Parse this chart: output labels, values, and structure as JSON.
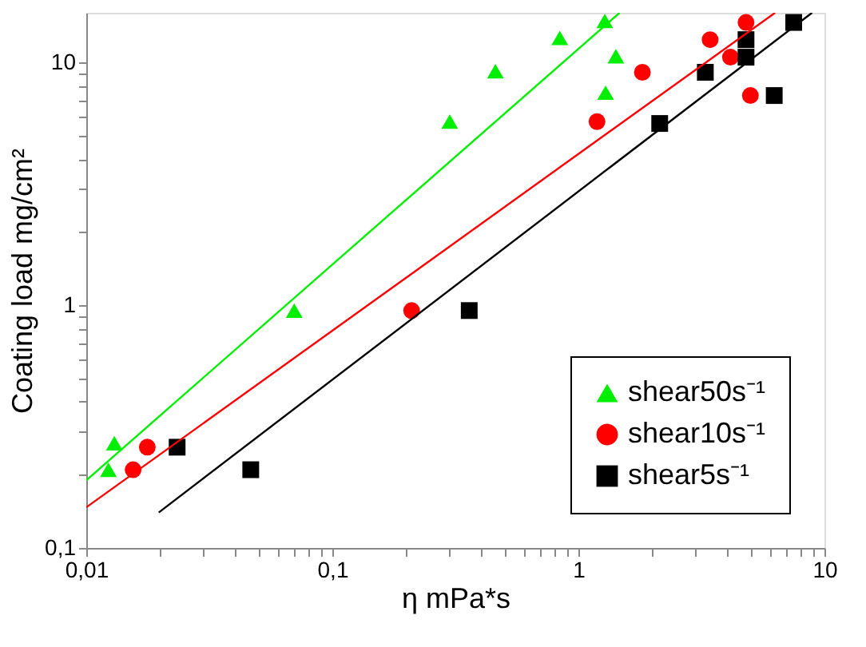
{
  "chart_data": {
    "type": "scatter",
    "xlabel": "η mPa*s",
    "ylabel": "Coating load mg/cm²",
    "log": "xy",
    "grid": false,
    "legend": "bottom right",
    "xlim": [
      0.01,
      10
    ],
    "ylim": [
      0.1,
      16
    ],
    "xticks": [
      {
        "value": 0.01,
        "label": "0,01"
      },
      {
        "value": 0.02,
        "label": null
      },
      {
        "value": 0.03,
        "label": null
      },
      {
        "value": 0.04,
        "label": null
      },
      {
        "value": 0.05,
        "label": null
      },
      {
        "value": 0.06,
        "label": null
      },
      {
        "value": 0.07,
        "label": null
      },
      {
        "value": 0.08,
        "label": null
      },
      {
        "value": 0.09,
        "label": null
      },
      {
        "value": 0.1,
        "label": "0,1"
      },
      {
        "value": 0.2,
        "label": null
      },
      {
        "value": 0.3,
        "label": null
      },
      {
        "value": 0.4,
        "label": null
      },
      {
        "value": 0.5,
        "label": null
      },
      {
        "value": 0.6,
        "label": null
      },
      {
        "value": 0.7,
        "label": null
      },
      {
        "value": 0.8,
        "label": null
      },
      {
        "value": 0.9,
        "label": null
      },
      1,
      {
        "value": 2,
        "label": null
      },
      {
        "value": 3,
        "label": null
      },
      {
        "value": 4,
        "label": null
      },
      {
        "value": 5,
        "label": null
      },
      {
        "value": 6,
        "label": null
      },
      {
        "value": 7,
        "label": null
      },
      {
        "value": 8,
        "label": null
      },
      {
        "value": 9,
        "label": null
      },
      10
    ],
    "yticks": [
      {
        "value": 0.1,
        "label": "0,1"
      },
      {
        "value": 0.2,
        "label": null
      },
      {
        "value": 0.3,
        "label": null
      },
      {
        "value": 0.4,
        "label": null
      },
      {
        "value": 0.5,
        "label": null
      },
      {
        "value": 0.6,
        "label": null
      },
      {
        "value": 0.7,
        "label": null
      },
      {
        "value": 0.8,
        "label": null
      },
      {
        "value": 0.9,
        "label": null
      },
      1,
      {
        "value": 2,
        "label": null
      },
      {
        "value": 3,
        "label": null
      },
      {
        "value": 4,
        "label": null
      },
      {
        "value": 5,
        "label": null
      },
      {
        "value": 6,
        "label": null
      },
      {
        "value": 7,
        "label": null
      },
      {
        "value": 8,
        "label": null
      },
      {
        "value": 9,
        "label": null
      },
      10
    ],
    "series": [
      {
        "name": "shear50s⁻¹",
        "marker": "triangle",
        "color": "#00ee00",
        "x": [
          0.0123,
          0.013,
          0.07,
          0.3,
          0.46,
          0.84,
          1.28,
          1.42,
          1.29
        ],
        "values": [
          0.21,
          0.27,
          0.95,
          5.7,
          9.2,
          12.6,
          14.8,
          10.6,
          7.5
        ]
      },
      {
        "name": "shear10s⁻¹",
        "marker": "circle",
        "color": "#ff0000",
        "x": [
          0.0155,
          0.0177,
          0.21,
          1.19,
          1.82,
          3.43,
          4.15,
          4.8,
          5.0
        ],
        "values": [
          0.21,
          0.26,
          0.95,
          5.7,
          9.1,
          12.4,
          10.5,
          14.6,
          7.3
        ]
      },
      {
        "name": "shear5s⁻¹",
        "marker": "square",
        "color": "#000000",
        "x": [
          0.0234,
          0.0466,
          0.36,
          2.14,
          3.28,
          4.8,
          4.8,
          6.25,
          7.5
        ],
        "values": [
          0.26,
          0.21,
          0.95,
          5.6,
          9.1,
          12.4,
          10.5,
          7.3,
          14.6
        ]
      },
      {
        "type": "line",
        "color": "#00ee00",
        "x": [
          0.01,
          1.47
        ],
        "values": [
          0.19,
          16
        ]
      },
      {
        "type": "line",
        "color": "#ff0000",
        "x": [
          0.01,
          6.3
        ],
        "values": [
          0.147,
          16
        ]
      },
      {
        "type": "line",
        "color": "#000000",
        "x": [
          0.0197,
          8.9
        ],
        "values": [
          0.14,
          16
        ]
      }
    ]
  }
}
